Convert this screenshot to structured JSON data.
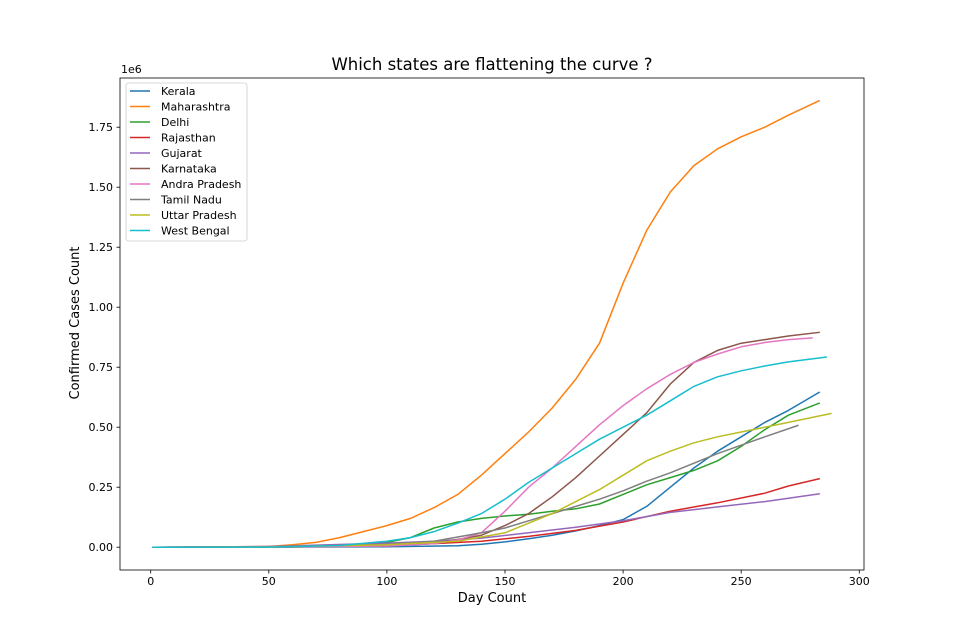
{
  "chart_data": {
    "type": "line",
    "title": "Which states are flattening the curve ?",
    "xlabel": "Day Count",
    "ylabel": "Confirmed Cases Count",
    "y_offset_label": "1e6",
    "xlim": [
      -13,
      302
    ],
    "ylim": [
      -95000,
      1955000
    ],
    "xticks": [
      0,
      50,
      100,
      150,
      200,
      250,
      300
    ],
    "yticks": [
      0,
      250000,
      500000,
      750000,
      1000000,
      1250000,
      1500000,
      1750000
    ],
    "ytick_labels": [
      "0.00",
      "0.25",
      "0.50",
      "0.75",
      "1.00",
      "1.25",
      "1.50",
      "1.75"
    ],
    "grid": false,
    "legend_position": "upper-left",
    "series": [
      {
        "name": "Kerala",
        "color": "#1f77b4",
        "x": [
          1,
          50,
          100,
          130,
          140,
          150,
          160,
          170,
          180,
          190,
          200,
          210,
          220,
          230,
          240,
          250,
          260,
          270,
          283
        ],
        "y": [
          0,
          500,
          1500,
          6000,
          12000,
          22000,
          35000,
          50000,
          68000,
          90000,
          115000,
          170000,
          250000,
          330000,
          400000,
          460000,
          520000,
          570000,
          645000
        ]
      },
      {
        "name": "Maharashtra",
        "color": "#ff7f0e",
        "x": [
          1,
          40,
          50,
          60,
          70,
          80,
          90,
          100,
          110,
          120,
          130,
          140,
          150,
          160,
          170,
          180,
          190,
          200,
          210,
          220,
          230,
          240,
          250,
          260,
          270,
          283
        ],
        "y": [
          0,
          500,
          3000,
          10000,
          20000,
          40000,
          65000,
          90000,
          120000,
          165000,
          220000,
          300000,
          390000,
          480000,
          580000,
          700000,
          850000,
          1100000,
          1320000,
          1480000,
          1590000,
          1660000,
          1710000,
          1750000,
          1800000,
          1860000
        ]
      },
      {
        "name": "Delhi",
        "color": "#2ca02c",
        "x": [
          1,
          50,
          80,
          100,
          110,
          120,
          130,
          140,
          150,
          160,
          170,
          180,
          190,
          200,
          210,
          220,
          230,
          240,
          250,
          260,
          270,
          283
        ],
        "y": [
          0,
          500,
          3000,
          20000,
          40000,
          80000,
          105000,
          120000,
          130000,
          137000,
          150000,
          160000,
          180000,
          220000,
          260000,
          290000,
          320000,
          360000,
          420000,
          490000,
          550000,
          600000
        ]
      },
      {
        "name": "Rajasthan",
        "color": "#d62728",
        "x": [
          1,
          50,
          100,
          120,
          140,
          160,
          180,
          200,
          220,
          240,
          260,
          270,
          283
        ],
        "y": [
          0,
          3000,
          10000,
          15000,
          25000,
          45000,
          70000,
          105000,
          150000,
          185000,
          225000,
          255000,
          285000
        ]
      },
      {
        "name": "Gujarat",
        "color": "#9467bd",
        "x": [
          1,
          50,
          100,
          120,
          140,
          160,
          180,
          200,
          220,
          240,
          260,
          283
        ],
        "y": [
          0,
          3000,
          17000,
          25000,
          38000,
          60000,
          83000,
          110000,
          145000,
          168000,
          190000,
          222000
        ]
      },
      {
        "name": "Karnataka",
        "color": "#8c564b",
        "x": [
          1,
          50,
          100,
          120,
          140,
          150,
          160,
          170,
          180,
          190,
          200,
          210,
          220,
          230,
          240,
          250,
          260,
          270,
          283
        ],
        "y": [
          0,
          500,
          5000,
          15000,
          50000,
          90000,
          140000,
          210000,
          290000,
          380000,
          470000,
          560000,
          680000,
          770000,
          820000,
          850000,
          865000,
          880000,
          895000
        ]
      },
      {
        "name": "Andra Pradesh",
        "color": "#e377c2",
        "x": [
          1,
          50,
          100,
          120,
          130,
          140,
          150,
          160,
          170,
          180,
          190,
          200,
          210,
          220,
          230,
          240,
          250,
          260,
          270,
          280
        ],
        "y": [
          0,
          500,
          5000,
          15000,
          30000,
          60000,
          150000,
          250000,
          330000,
          420000,
          510000,
          590000,
          660000,
          720000,
          770000,
          805000,
          835000,
          853000,
          865000,
          872000
        ]
      },
      {
        "name": "Tamil Nadu",
        "color": "#7f7f7f",
        "x": [
          1,
          50,
          100,
          120,
          140,
          150,
          160,
          170,
          180,
          190,
          200,
          210,
          220,
          230,
          240,
          250,
          260,
          274
        ],
        "y": [
          0,
          2000,
          12000,
          25000,
          60000,
          80000,
          110000,
          140000,
          170000,
          200000,
          235000,
          275000,
          310000,
          350000,
          390000,
          425000,
          460000,
          507000
        ]
      },
      {
        "name": "Uttar Pradesh",
        "color": "#bcbd22",
        "x": [
          1,
          50,
          100,
          130,
          150,
          160,
          170,
          180,
          190,
          200,
          210,
          220,
          230,
          240,
          250,
          260,
          270,
          288
        ],
        "y": [
          0,
          1000,
          10000,
          25000,
          60000,
          100000,
          140000,
          190000,
          240000,
          300000,
          360000,
          400000,
          435000,
          460000,
          480000,
          500000,
          520000,
          557000
        ]
      },
      {
        "name": "West Bengal",
        "color": "#17becf",
        "x": [
          1,
          50,
          80,
          100,
          110,
          120,
          130,
          140,
          150,
          160,
          170,
          180,
          190,
          200,
          210,
          220,
          230,
          240,
          250,
          260,
          270,
          286
        ],
        "y": [
          0,
          500,
          7000,
          25000,
          40000,
          65000,
          100000,
          140000,
          200000,
          270000,
          330000,
          390000,
          450000,
          500000,
          550000,
          610000,
          670000,
          710000,
          735000,
          755000,
          772000,
          792000
        ]
      }
    ]
  }
}
